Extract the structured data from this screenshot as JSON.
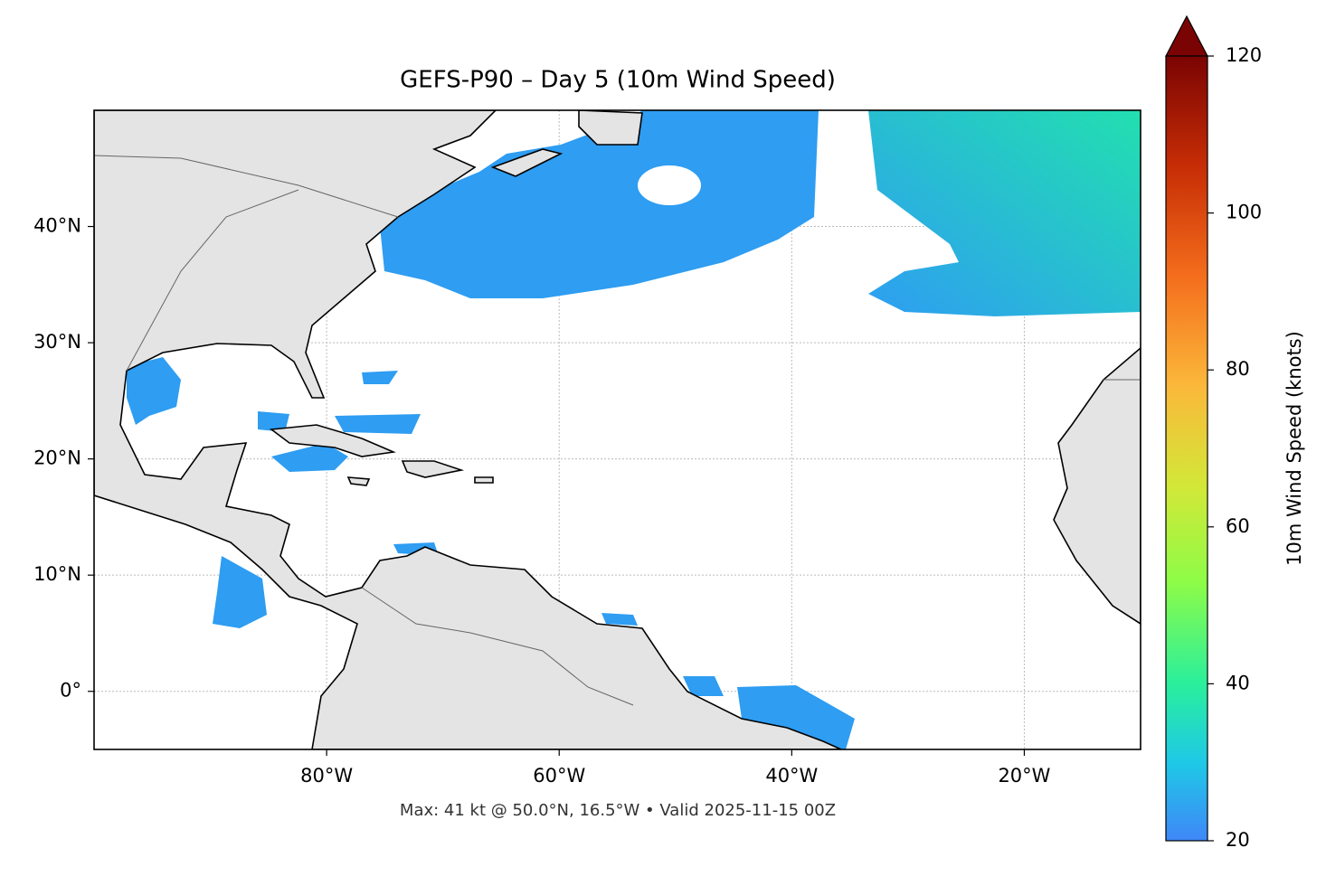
{
  "chart_data": {
    "type": "map",
    "title": "GEFS-P90 – Day 5 (10m Wind Speed)",
    "subtitle": "Max: 41 kt @ 50.0°N, 16.5°W • Valid 2025-11-15 00Z",
    "xlim": [
      -100,
      -10
    ],
    "ylim": [
      -5,
      50
    ],
    "xticks": [
      {
        "value": -80,
        "label": "80°W"
      },
      {
        "value": -60,
        "label": "60°W"
      },
      {
        "value": -40,
        "label": "40°W"
      },
      {
        "value": -20,
        "label": "20°W"
      }
    ],
    "yticks": [
      {
        "value": 0,
        "label": "0°"
      },
      {
        "value": 10,
        "label": "10°N"
      },
      {
        "value": 20,
        "label": "20°N"
      },
      {
        "value": 30,
        "label": "30°N"
      },
      {
        "value": 40,
        "label": "40°N"
      }
    ],
    "grid": true,
    "colorbar": {
      "label": "10m Wind Speed (knots)",
      "lim": [
        20,
        120
      ],
      "ticks": [
        20,
        40,
        60,
        80,
        100,
        120
      ]
    }
  }
}
